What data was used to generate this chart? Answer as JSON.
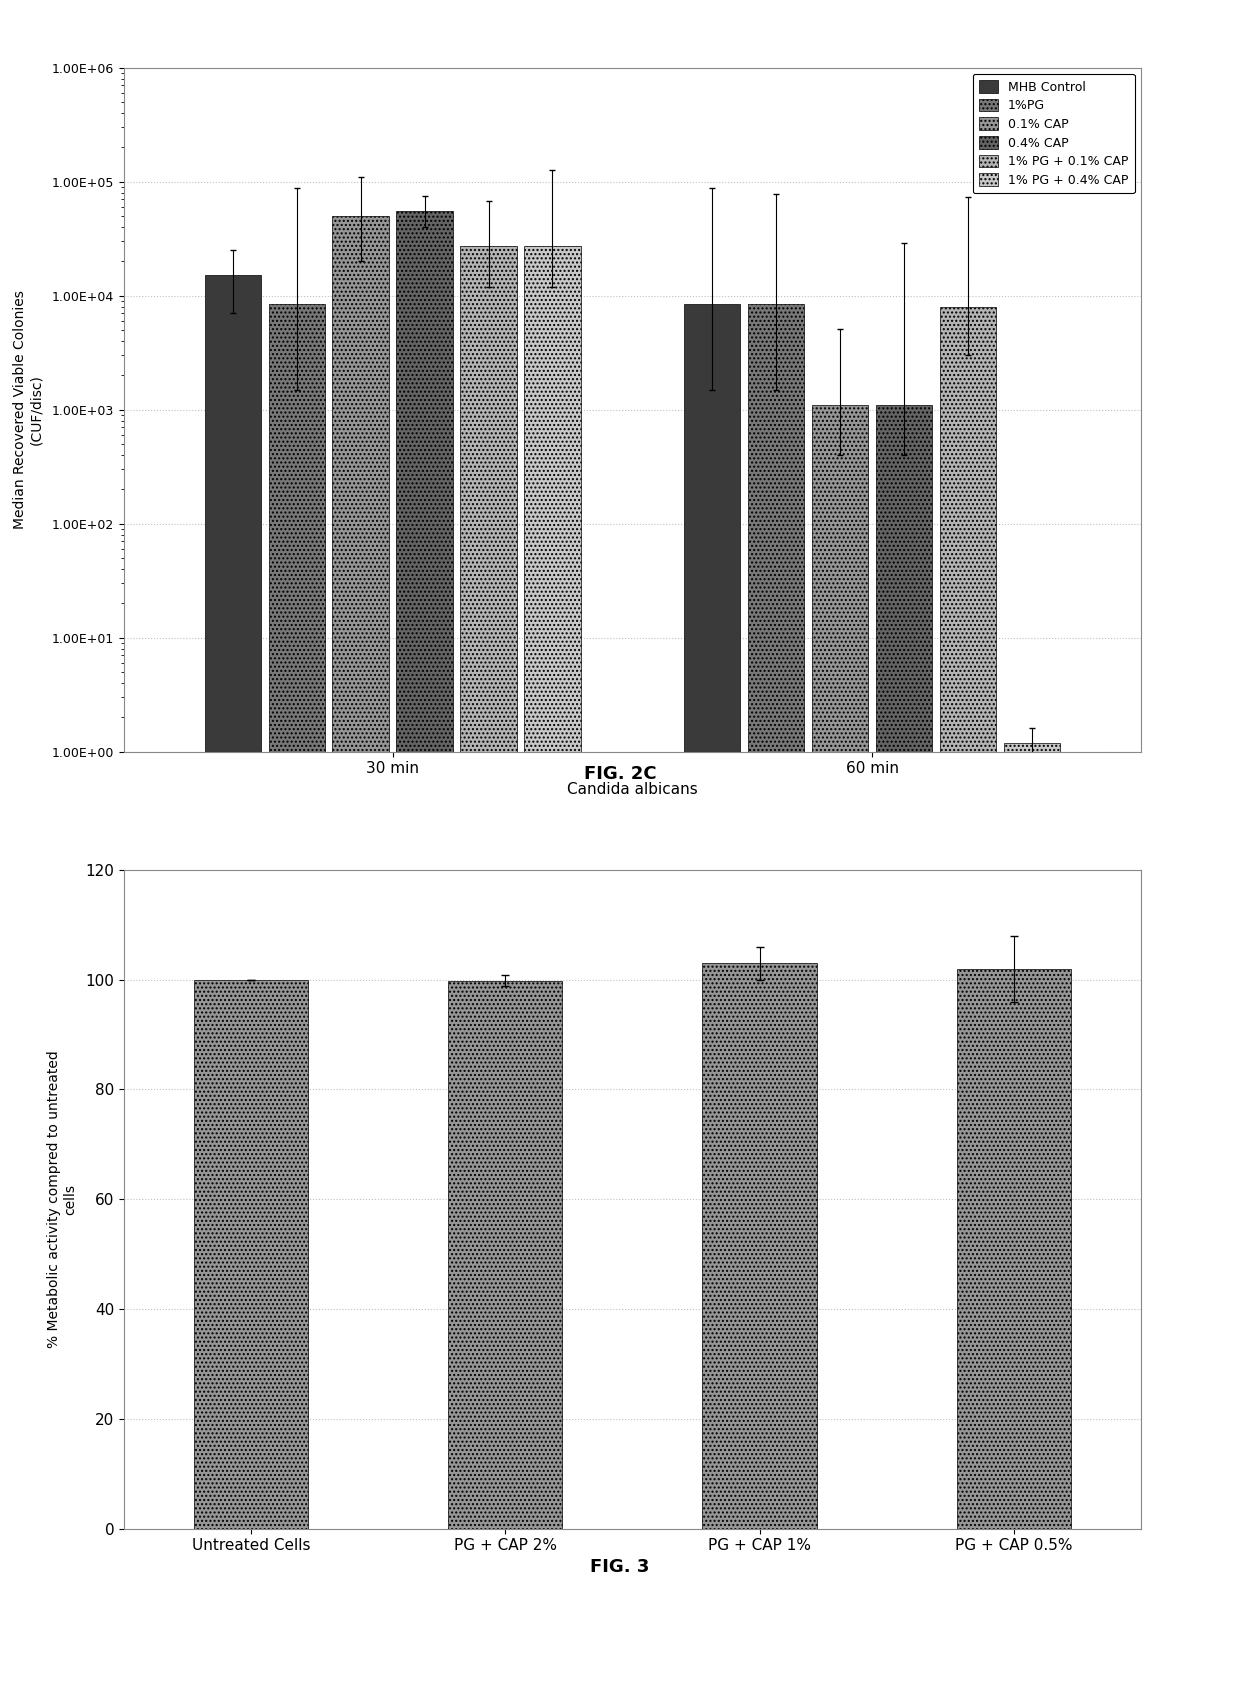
{
  "fig2c": {
    "caption": "FIG. 2C",
    "xlabel": "Candida albicans",
    "ylabel": "Median Recovered Viable Colonies\n(CUF/disc)",
    "groups": [
      "30 min",
      "60 min"
    ],
    "series": [
      "MHB Control",
      "1%PG",
      "0.1% CAP",
      "0.4% CAP",
      "1% PG + 0.1% CAP",
      "1% PG + 0.4% CAP"
    ],
    "values": [
      [
        15000,
        8500,
        50000,
        55000,
        27000,
        27000
      ],
      [
        8500,
        8500,
        1100,
        1100,
        8000,
        1.2
      ]
    ],
    "err_up": [
      [
        10000,
        80000,
        60000,
        20000,
        40000,
        100000
      ],
      [
        80000,
        70000,
        4000,
        28000,
        65000,
        0.4
      ]
    ],
    "err_dn": [
      [
        8000,
        7000,
        30000,
        15000,
        15000,
        15000
      ],
      [
        7000,
        7000,
        700,
        700,
        5000,
        0.5
      ]
    ],
    "ylim_log": [
      1.0,
      1000000.0
    ],
    "yticks": [
      1,
      10,
      100,
      1000,
      10000,
      100000,
      1000000
    ],
    "ytick_labels": [
      "1.00E+00",
      "1.00E+01",
      "1.00E+02",
      "1.00E+03",
      "1.00E+04",
      "1.00E+05",
      "1.00E+06"
    ],
    "bar_colors": [
      "#3a3a3a",
      "#787878",
      "#969696",
      "#646464",
      "#b4b4b4",
      "#c8c8c8"
    ],
    "bar_hatches": [
      "",
      "....",
      "....",
      "....",
      "....",
      "...."
    ],
    "grid_color": "#c0c0c0",
    "border_color": "#aaaaaa"
  },
  "fig3": {
    "caption": "FIG. 3",
    "ylabel": "% Metabolic activity compred to untreated\ncells",
    "categories": [
      "Untreated Cells",
      "PG + CAP 2%",
      "PG + CAP 1%",
      "PG + CAP 0.5%"
    ],
    "values": [
      100.0,
      99.8,
      103.0,
      102.0
    ],
    "errors": [
      0.0,
      1.0,
      3.0,
      6.0
    ],
    "ylim": [
      0,
      120
    ],
    "yticks": [
      0,
      20,
      40,
      60,
      80,
      100,
      120
    ],
    "bar_color": "#969696",
    "bar_hatch": "....",
    "grid_color": "#c0c0c0",
    "border_color": "#aaaaaa"
  },
  "bg_color": "#ffffff",
  "panel_bg": "#ffffff"
}
